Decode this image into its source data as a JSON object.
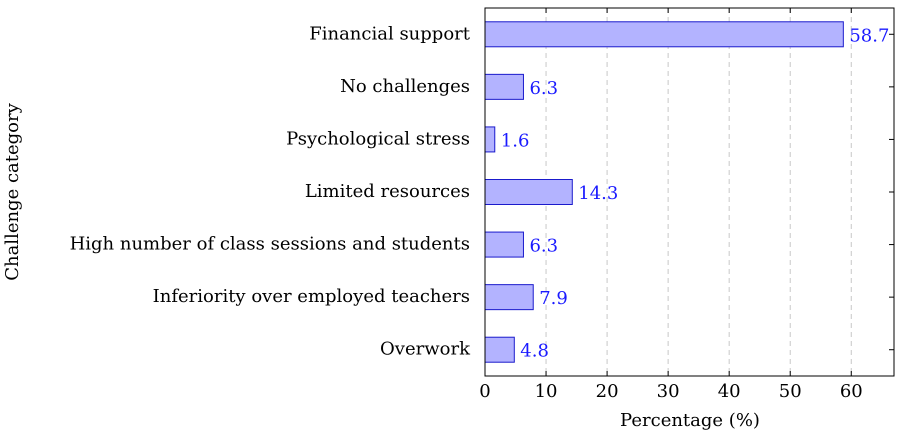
{
  "chart_data": {
    "type": "bar",
    "orientation": "horizontal",
    "xlabel": "Percentage (%)",
    "ylabel": "Challenge category",
    "categories": [
      "Financial support",
      "No challenges",
      "Psychological stress",
      "Limited resources",
      "High number of class sessions and students",
      "Inferiority over employed teachers",
      "Overwork"
    ],
    "values": [
      58.7,
      6.3,
      1.6,
      14.3,
      6.3,
      7.9,
      4.8
    ],
    "color": "#b3b3ff",
    "edge_color": "#1a1acc",
    "label_color": "#1a1aff",
    "xlim": [
      0,
      67
    ],
    "xticks": [
      0,
      10,
      20,
      30,
      40,
      50,
      60
    ],
    "grid": true
  }
}
